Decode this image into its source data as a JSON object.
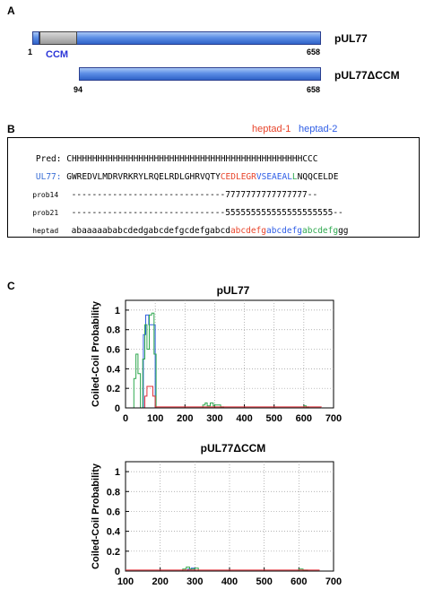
{
  "panel_a": {
    "letter": "A",
    "full": {
      "name": "pUL77",
      "start_label": "1",
      "end_label": "658",
      "domain_label": "CCM"
    },
    "deletion": {
      "name": "pUL77ΔCCM",
      "start_label": "94",
      "end_label": "658"
    },
    "colors": {
      "bar": "#3d6fd6",
      "ccm": "#a8a8a8",
      "ccm_label": "#2b35d8"
    }
  },
  "panel_b": {
    "letter": "B",
    "heptad1_label": "heptad-1",
    "heptad2_label": "heptad-2",
    "rows": {
      "pred_label": "Pred:",
      "pred_seq": "CHHHHHHHHHHHHHHHHHHHHHHHHHHHHHHHHHHHHHHHHHHHHHCCC",
      "ul77_label": "UL77:",
      "ul77_seq_a": "GWREDVLMDRVRKRYLRQELRDLGHRVQTY",
      "ul77_seq_h1": "CEDLEGR",
      "ul77_seq_h2": "VSEAEAL",
      "ul77_seq_h3": "L",
      "ul77_seq_end": "NQQCELDE",
      "prob14_label": "prob14",
      "prob14_seq": "------------------------------7777777777777777--",
      "prob21_label": "prob21",
      "prob21_seq": "------------------------------555555555555555555555--",
      "heptad_label": "heptad",
      "heptad_seq_a": "abaaaaababcdedgabcdefgcdefgabcd",
      "heptad_seq_h1": "abcdefg",
      "heptad_seq_h2": "abcdefg",
      "heptad_seq_h3": "abcdefg",
      "heptad_seq_end": "gg"
    },
    "colors": {
      "heptad1": "#e8452c",
      "heptad2": "#2f5ee6",
      "heptad3": "#2fa84f",
      "ul77_label": "#3b6fd6"
    }
  },
  "panel_c": {
    "letter": "C"
  },
  "chart_data": [
    {
      "type": "line",
      "title": "pUL77",
      "xlabel": "",
      "ylabel": "Coiled-Coil Probability",
      "xlim": [
        0,
        700
      ],
      "ylim": [
        0,
        1.1
      ],
      "xticks": [
        0,
        100,
        200,
        300,
        400,
        500,
        600,
        700
      ],
      "yticks": [
        0,
        0.2,
        0.4,
        0.6,
        0.8,
        1
      ],
      "grid": "dotted",
      "series": [
        {
          "color": "#3060e0",
          "x": [
            0,
            60,
            60,
            68,
            68,
            78,
            78,
            100,
            100,
            660
          ],
          "y": [
            0,
            0,
            0.75,
            0.75,
            0.95,
            0.95,
            0.85,
            0.85,
            0,
            0
          ]
        },
        {
          "color": "#2fa84f",
          "x": [
            0,
            28,
            28,
            35,
            35,
            42,
            42,
            50,
            50,
            58,
            58,
            65,
            65,
            72,
            72,
            80,
            80,
            88,
            88,
            96,
            96,
            103,
            103,
            260,
            260,
            268,
            268,
            275,
            275,
            285,
            285,
            295,
            295,
            300,
            300,
            320,
            320,
            330,
            330,
            600,
            600,
            608,
            608,
            616,
            616,
            660
          ],
          "y": [
            0,
            0,
            0.3,
            0.3,
            0.55,
            0.55,
            0.35,
            0.35,
            0,
            0,
            0.5,
            0.5,
            0.85,
            0.85,
            0.6,
            0.6,
            0.95,
            0.95,
            0.97,
            0.97,
            0.55,
            0.55,
            0,
            0,
            0.03,
            0.03,
            0.05,
            0.05,
            0.02,
            0.02,
            0.05,
            0.05,
            0.02,
            0.02,
            0.03,
            0.03,
            0.01,
            0.01,
            0,
            0,
            0.02,
            0.02,
            0.01,
            0.01,
            0,
            0
          ]
        },
        {
          "color": "#e0303a",
          "x": [
            0,
            65,
            65,
            72,
            72,
            92,
            92,
            100,
            100,
            660
          ],
          "y": [
            0,
            0,
            0.12,
            0.12,
            0.22,
            0.22,
            0.12,
            0.12,
            0.01,
            0.01
          ]
        },
        {
          "color": "#000000",
          "x": [
            0,
            660
          ],
          "y": [
            0,
            0
          ]
        }
      ]
    },
    {
      "type": "line",
      "title": "pUL77ΔCCM",
      "xlabel": "",
      "ylabel": "Coiled-Coil Probability",
      "xlim": [
        100,
        700
      ],
      "ylim": [
        0,
        1.1
      ],
      "xticks": [
        100,
        200,
        300,
        400,
        500,
        600,
        700
      ],
      "yticks": [
        0,
        0.2,
        0.4,
        0.6,
        0.8,
        1
      ],
      "grid": "dotted",
      "series": [
        {
          "color": "#3060e0",
          "x": [
            100,
            280,
            280,
            290,
            290,
            300,
            300,
            660
          ],
          "y": [
            0,
            0,
            0.02,
            0.02,
            0.03,
            0.03,
            0,
            0
          ]
        },
        {
          "color": "#2fa84f",
          "x": [
            100,
            265,
            265,
            275,
            275,
            285,
            285,
            300,
            300,
            310,
            310,
            600,
            600,
            612,
            612,
            625,
            625,
            660
          ],
          "y": [
            0,
            0,
            0.02,
            0.02,
            0.04,
            0.04,
            0.02,
            0.02,
            0.03,
            0.03,
            0,
            0,
            0.02,
            0.02,
            0.01,
            0.01,
            0,
            0
          ]
        },
        {
          "color": "#e0303a",
          "x": [
            100,
            660
          ],
          "y": [
            0.01,
            0.01
          ]
        },
        {
          "color": "#000000",
          "x": [
            100,
            660
          ],
          "y": [
            0,
            0
          ]
        }
      ]
    }
  ]
}
